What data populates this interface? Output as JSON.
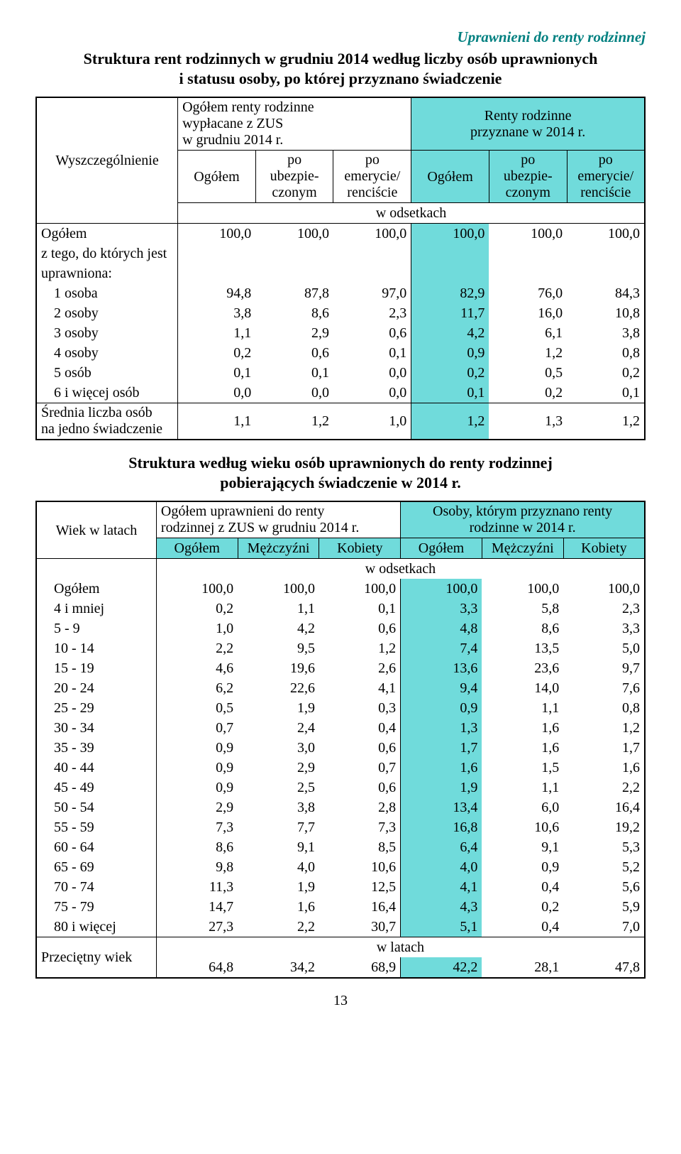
{
  "corner_title": "Uprawnieni do renty rodzinnej",
  "title1_line1": "Struktura rent rodzinnych w grudniu 2014 według liczby osób uprawnionych",
  "title1_line2": "i statusu osoby, po której przyznano świadczenie",
  "t1": {
    "stub": "Wyszczególnienie",
    "group_left_l1": "Ogółem renty rodzinne",
    "group_left_l2": "wypłacane z ZUS",
    "group_left_l3": "w grudniu 2014 r.",
    "group_right_l1": "Renty rodzinne",
    "group_right_l2": "przyznane w 2014 r.",
    "col_ogolem": "Ogółem",
    "col_ubez_l1": "po",
    "col_ubez_l2": "ubezpie-",
    "col_ubez_l3": "czonym",
    "col_emer_l1": "po",
    "col_emer_l2": "emerycie/",
    "col_emer_l3": "renciście",
    "unit": "w odsetkach",
    "rows": [
      {
        "label": "Ogółem",
        "vals": [
          "100,0",
          "100,0",
          "100,0",
          "100,0",
          "100,0",
          "100,0"
        ]
      },
      {
        "label": "z tego, do których jest",
        "vals": [
          "",
          "",
          "",
          "",
          "",
          ""
        ]
      },
      {
        "label": "uprawniona:",
        "vals": [
          "",
          "",
          "",
          "",
          "",
          ""
        ]
      },
      {
        "label": "1 osoba",
        "indent": true,
        "vals": [
          "94,8",
          "87,8",
          "97,0",
          "82,9",
          "76,0",
          "84,3"
        ]
      },
      {
        "label": "2 osoby",
        "indent": true,
        "vals": [
          "3,8",
          "8,6",
          "2,3",
          "11,7",
          "16,0",
          "10,8"
        ]
      },
      {
        "label": "3 osoby",
        "indent": true,
        "vals": [
          "1,1",
          "2,9",
          "0,6",
          "4,2",
          "6,1",
          "3,8"
        ]
      },
      {
        "label": "4 osoby",
        "indent": true,
        "vals": [
          "0,2",
          "0,6",
          "0,1",
          "0,9",
          "1,2",
          "0,8"
        ]
      },
      {
        "label": "5 osób",
        "indent": true,
        "vals": [
          "0,1",
          "0,1",
          "0,0",
          "0,2",
          "0,5",
          "0,2"
        ]
      },
      {
        "label": "6 i więcej osób",
        "indent": true,
        "vals": [
          "0,0",
          "0,0",
          "0,0",
          "0,1",
          "0,2",
          "0,1"
        ]
      }
    ],
    "avg_label_l1": "Średnia liczba osób",
    "avg_label_l2": "na jedno świadczenie",
    "avg_vals": [
      "1,1",
      "1,2",
      "1,0",
      "1,2",
      "1,3",
      "1,2"
    ]
  },
  "title2_line1": "Struktura według wieku osób uprawnionych do renty rodzinnej",
  "title2_line2": "pobierających świadczenie w 2014 r.",
  "t2": {
    "stub": "Wiek w latach",
    "group_left_l1": "Ogółem uprawnieni do renty",
    "group_left_l2": "rodzinnej z ZUS w grudniu 2014 r.",
    "group_right_l1": "Osoby, którym przyznano renty",
    "group_right_l2": "rodzinne w 2014 r.",
    "col_og": "Ogółem",
    "col_m": "Mężczyźni",
    "col_k": "Kobiety",
    "unit": "w odsetkach",
    "rows": [
      {
        "label": "Ogółem",
        "vals": [
          "100,0",
          "100,0",
          "100,0",
          "100,0",
          "100,0",
          "100,0"
        ]
      },
      {
        "label": "4 i mniej",
        "vals": [
          "0,2",
          "1,1",
          "0,1",
          "3,3",
          "5,8",
          "2,3"
        ]
      },
      {
        "label": "5 - 9",
        "vals": [
          "1,0",
          "4,2",
          "0,6",
          "4,8",
          "8,6",
          "3,3"
        ]
      },
      {
        "label": "10 - 14",
        "vals": [
          "2,2",
          "9,5",
          "1,2",
          "7,4",
          "13,5",
          "5,0"
        ]
      },
      {
        "label": "15 - 19",
        "vals": [
          "4,6",
          "19,6",
          "2,6",
          "13,6",
          "23,6",
          "9,7"
        ]
      },
      {
        "label": "20 - 24",
        "vals": [
          "6,2",
          "22,6",
          "4,1",
          "9,4",
          "14,0",
          "7,6"
        ]
      },
      {
        "label": "25 - 29",
        "vals": [
          "0,5",
          "1,9",
          "0,3",
          "0,9",
          "1,1",
          "0,8"
        ]
      },
      {
        "label": "30 - 34",
        "vals": [
          "0,7",
          "2,4",
          "0,4",
          "1,3",
          "1,6",
          "1,2"
        ]
      },
      {
        "label": "35 - 39",
        "vals": [
          "0,9",
          "3,0",
          "0,6",
          "1,7",
          "1,6",
          "1,7"
        ]
      },
      {
        "label": "40 - 44",
        "vals": [
          "0,9",
          "2,9",
          "0,7",
          "1,6",
          "1,5",
          "1,6"
        ]
      },
      {
        "label": "45 - 49",
        "vals": [
          "0,9",
          "2,5",
          "0,6",
          "1,9",
          "1,1",
          "2,2"
        ]
      },
      {
        "label": "50 - 54",
        "vals": [
          "2,9",
          "3,8",
          "2,8",
          "13,4",
          "6,0",
          "16,4"
        ]
      },
      {
        "label": "55 - 59",
        "vals": [
          "7,3",
          "7,7",
          "7,3",
          "16,8",
          "10,6",
          "19,2"
        ]
      },
      {
        "label": "60 - 64",
        "vals": [
          "8,6",
          "9,1",
          "8,5",
          "6,4",
          "9,1",
          "5,3"
        ]
      },
      {
        "label": "65 - 69",
        "vals": [
          "9,8",
          "4,0",
          "10,6",
          "4,0",
          "0,9",
          "5,2"
        ]
      },
      {
        "label": "70 - 74",
        "vals": [
          "11,3",
          "1,9",
          "12,5",
          "4,1",
          "0,4",
          "5,6"
        ]
      },
      {
        "label": "75 - 79",
        "vals": [
          "14,7",
          "1,6",
          "16,4",
          "4,3",
          "0,2",
          "5,9"
        ]
      },
      {
        "label": "80 i więcej",
        "vals": [
          "27,3",
          "2,2",
          "30,7",
          "5,1",
          "0,4",
          "7,0"
        ]
      }
    ],
    "unit2": "w latach",
    "avg_label": "Przeciętny wiek",
    "avg_vals": [
      "64,8",
      "34,2",
      "68,9",
      "42,2",
      "28,1",
      "47,8"
    ]
  },
  "page_number": "13",
  "colors": {
    "teal_bg": "#70dbdb",
    "teal_text": "#008080",
    "black": "#000000"
  }
}
